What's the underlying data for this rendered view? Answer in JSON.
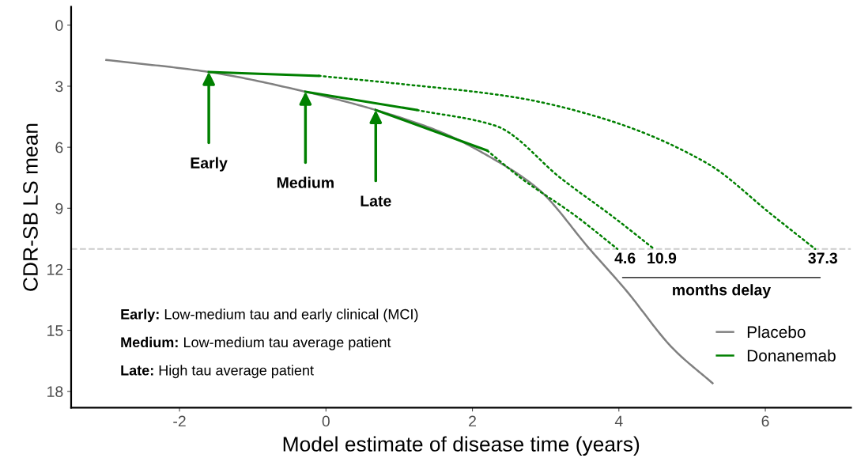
{
  "chart_data": {
    "type": "line",
    "xlabel": "Model estimate of disease time (years)",
    "ylabel": "CDR-SB LS mean",
    "xlim": [
      -3.48,
      7.17
    ],
    "ylim": [
      18.8,
      -0.9
    ],
    "xticks": [
      -2,
      0,
      2,
      4,
      6
    ],
    "yticks": [
      0,
      3,
      6,
      9,
      12,
      15,
      18
    ],
    "grid": false,
    "legend": "bottom right",
    "series": [
      {
        "name": "Placebo",
        "color": "#808080",
        "line_style": "solid",
        "x": [
          -3.0,
          -1.6,
          -0.28,
          0.68,
          1.6,
          2.25,
          2.9,
          3.6,
          4.09,
          4.74,
          5.28
        ],
        "values": [
          1.71,
          2.3,
          3.27,
          4.17,
          5.3,
          6.5,
          8.06,
          11.0,
          13.0,
          15.9,
          17.6
        ]
      },
      {
        "name": "Donanemab",
        "color": "#008000",
        "line_style": "solid",
        "x": [
          -1.6,
          -0.1
        ],
        "values": [
          2.3,
          2.49
        ]
      },
      {
        "color": "#008000",
        "line_style": "dotted",
        "x": [
          -0.1,
          1.0,
          2.57,
          3.76,
          5.2,
          6.1,
          6.68
        ],
        "values": [
          2.49,
          2.88,
          3.54,
          4.56,
          6.78,
          9.35,
          11.0
        ]
      },
      {
        "color": "#008000",
        "line_style": "solid",
        "x": [
          -0.28,
          1.24
        ],
        "values": [
          3.27,
          4.17
        ]
      },
      {
        "color": "#008000",
        "line_style": "dotted",
        "x": [
          1.24,
          2.32,
          3.22,
          3.95,
          4.48
        ],
        "values": [
          4.17,
          4.95,
          7.56,
          9.5,
          11.0
        ]
      },
      {
        "color": "#008000",
        "line_style": "solid",
        "x": [
          0.68,
          2.2
        ],
        "values": [
          4.17,
          6.16
        ]
      },
      {
        "color": "#008000",
        "line_style": "dotted",
        "x": [
          2.2,
          2.68,
          3.4,
          3.98
        ],
        "values": [
          6.16,
          7.56,
          9.35,
          11.0
        ]
      }
    ],
    "ref_lines": [
      {
        "axis": "y",
        "value": 11,
        "color": "#cccccc",
        "line_style": "dashed"
      }
    ],
    "annotations": [
      {
        "text": "Early",
        "x": -1.6,
        "y": 2.3
      },
      {
        "text": "Medium",
        "x": -0.28,
        "y": 3.27
      },
      {
        "text": "Late",
        "x": 0.68,
        "y": 4.17
      },
      {
        "text": "4.6",
        "x": 3.98,
        "y": 11
      },
      {
        "text": "10.9",
        "x": 4.48,
        "y": 11
      },
      {
        "text": "37.3",
        "x": 6.68,
        "y": 11
      },
      "months delay",
      "Early: Low-medium tau and early clinical (MCI)",
      "Medium: Low-medium tau average patient",
      "Late: High tau average patient"
    ]
  }
}
